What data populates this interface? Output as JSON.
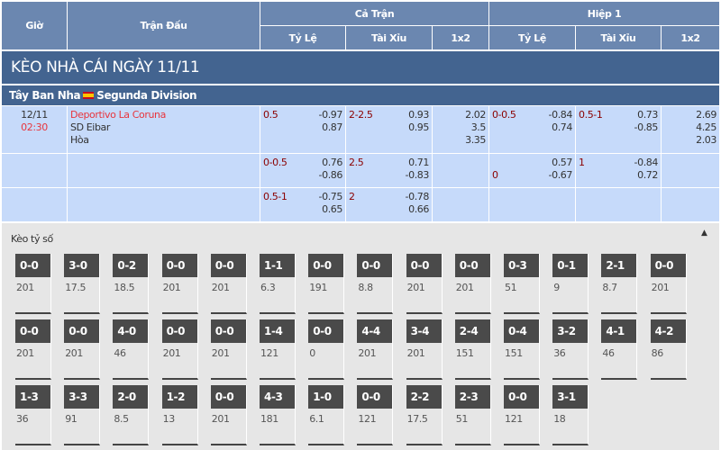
{
  "header": {
    "gio": "Giờ",
    "tran_dau": "Trận Đấu",
    "ca_tran": "Cả Trận",
    "hiep1": "Hiệp 1",
    "sub": [
      "Tỷ Lệ",
      "Tài Xỉu",
      "1x2",
      "Tỷ Lệ",
      "Tài Xỉu",
      "1x2"
    ]
  },
  "title": "KÈO NHÀ CÁI NGÀY 11/11",
  "league": {
    "country": "Tây Ban Nha",
    "name": "Segunda Division",
    "flag_icon": "spain-flag-icon"
  },
  "match": {
    "date": "12/11",
    "time": "02:30",
    "home": "Deportivo La Coruna",
    "away": "SD Eibar",
    "draw": "Hòa"
  },
  "rows": [
    {
      "ft_hdp": "0.5",
      "ft_hdp_odds": [
        "-0.97",
        "0.87"
      ],
      "ft_ou": "2-2.5",
      "ft_ou_odds": [
        "0.93",
        "0.95"
      ],
      "ft_1x2": [
        "2.02",
        "3.5",
        "3.35"
      ],
      "h1_hdp": "0-0.5",
      "h1_hdp_pos": "top",
      "h1_hdp_odds": [
        "-0.84",
        "0.74"
      ],
      "h1_ou": "0.5-1",
      "h1_ou_odds": [
        "0.73",
        "-0.85"
      ],
      "h1_1x2": [
        "2.69",
        "4.25",
        "2.03"
      ]
    },
    {
      "ft_hdp": "0-0.5",
      "ft_hdp_odds": [
        "0.76",
        "-0.86"
      ],
      "ft_ou": "2.5",
      "ft_ou_odds": [
        "0.71",
        "-0.83"
      ],
      "ft_1x2": [],
      "h1_hdp": "0",
      "h1_hdp_pos": "bottom",
      "h1_hdp_odds": [
        "0.57",
        "-0.67"
      ],
      "h1_ou": "1",
      "h1_ou_odds": [
        "-0.84",
        "0.72"
      ],
      "h1_1x2": []
    },
    {
      "ft_hdp": "0.5-1",
      "ft_hdp_odds": [
        "-0.75",
        "0.65"
      ],
      "ft_ou": "2",
      "ft_ou_odds": [
        "-0.78",
        "0.66"
      ],
      "ft_1x2": [],
      "h1_hdp": "",
      "h1_hdp_pos": "top",
      "h1_hdp_odds": [],
      "h1_ou": "",
      "h1_ou_odds": [],
      "h1_1x2": []
    }
  ],
  "score_section": {
    "title": "Kèo tỷ số",
    "collapse_icon": "caret-up-icon",
    "cards": [
      [
        "0-0",
        "201"
      ],
      [
        "3-0",
        "17.5"
      ],
      [
        "0-2",
        "18.5"
      ],
      [
        "0-0",
        "201"
      ],
      [
        "0-0",
        "201"
      ],
      [
        "1-1",
        "6.3"
      ],
      [
        "0-0",
        "191"
      ],
      [
        "0-0",
        "8.8"
      ],
      [
        "0-0",
        "201"
      ],
      [
        "0-0",
        "201"
      ],
      [
        "0-3",
        "51"
      ],
      [
        "0-1",
        "9"
      ],
      [
        "2-1",
        "8.7"
      ],
      [
        "0-0",
        "201"
      ],
      [
        "0-0",
        "201"
      ],
      [
        "0-0",
        "201"
      ],
      [
        "4-0",
        "46"
      ],
      [
        "0-0",
        "201"
      ],
      [
        "0-0",
        "201"
      ],
      [
        "1-4",
        "121"
      ],
      [
        "0-0",
        "0"
      ],
      [
        "4-4",
        "201"
      ],
      [
        "3-4",
        "201"
      ],
      [
        "2-4",
        "151"
      ],
      [
        "0-4",
        "151"
      ],
      [
        "3-2",
        "36"
      ],
      [
        "4-1",
        "46"
      ],
      [
        "4-2",
        "86"
      ],
      [
        "1-3",
        "36"
      ],
      [
        "3-3",
        "91"
      ],
      [
        "2-0",
        "8.5"
      ],
      [
        "1-2",
        "13"
      ],
      [
        "0-0",
        "201"
      ],
      [
        "4-3",
        "181"
      ],
      [
        "1-0",
        "6.1"
      ],
      [
        "0-0",
        "121"
      ],
      [
        "2-2",
        "17.5"
      ],
      [
        "2-3",
        "51"
      ],
      [
        "0-0",
        "121"
      ],
      [
        "3-1",
        "18"
      ]
    ]
  }
}
